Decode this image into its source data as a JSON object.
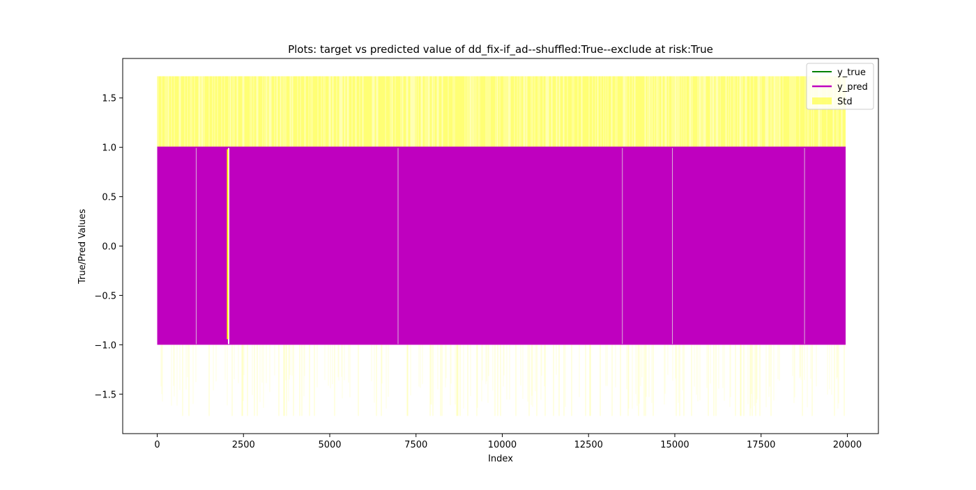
{
  "chart_data": {
    "type": "line",
    "title": "Plots: target vs predicted value of dd_fix-if_ad--shuffled:True--exclude at risk:True",
    "xlabel": "Index",
    "ylabel": "True/Pred Values",
    "xlim": [
      -1000,
      20900
    ],
    "ylim": [
      -1.9,
      1.9
    ],
    "x_ticks": [
      0,
      2500,
      5000,
      7500,
      10000,
      12500,
      15000,
      17500,
      20000
    ],
    "y_ticks": [
      -1.5,
      -1.0,
      -0.5,
      0.0,
      0.5,
      1.0,
      1.5
    ],
    "x_tick_labels": [
      "0",
      "2500",
      "5000",
      "7500",
      "10000",
      "12500",
      "15000",
      "17500",
      "20000"
    ],
    "y_tick_labels": [
      "−1.5",
      "−1.0",
      "−0.5",
      "0.0",
      "0.5",
      "1.0",
      "1.5"
    ],
    "grid": false,
    "legend_position": "top-right",
    "index_range": [
      0,
      19950
    ],
    "series": [
      {
        "name": "y_true",
        "color": "#008000",
        "style": "line",
        "description_values": [
          -1,
          1
        ]
      },
      {
        "name": "y_pred",
        "color": "#bf00bf",
        "style": "line",
        "value_range": [
          -1.0,
          1.0
        ],
        "gaps_at_index": [
          1130,
          2070,
          6980,
          13480,
          14930,
          18760
        ]
      },
      {
        "name": "Std",
        "color": "#ffff00",
        "style": "band",
        "opacity": 0.5,
        "upper": 1.72,
        "lower": -1.72
      }
    ],
    "highlight_line": {
      "index": 2070,
      "color": "#ffff00",
      "values": [
        -1.0,
        0.98
      ]
    }
  }
}
